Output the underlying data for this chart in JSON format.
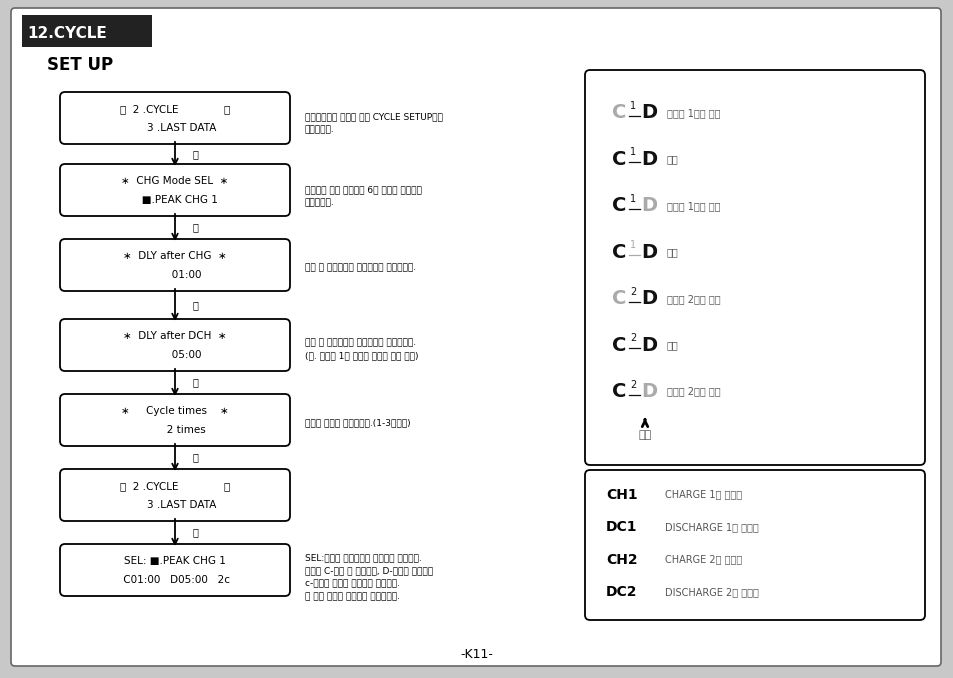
{
  "bg_color": "#c8c8c8",
  "title_bg": "#222222",
  "title_text": "12.CYCLE",
  "title_color": "#ffffff",
  "subtitle": "SET UP",
  "page_number": "-K11-",
  "flow_boxes": [
    {
      "lines": [
        "⏮  2 .CYCLE              ⏭",
        "    3 .LAST DATA"
      ]
    },
    {
      "lines": [
        "∗  CHG Mode SEL  ∗",
        "   ■.PEAK CHG 1"
      ]
    },
    {
      "lines": [
        "∗  DLY after CHG  ∗",
        "       01:00"
      ]
    },
    {
      "lines": [
        "∗  DLY after DCH  ∗",
        "       05:00"
      ]
    },
    {
      "lines": [
        "∗     Cycle times    ∗",
        "       2 times"
      ]
    },
    {
      "lines": [
        "⏮  2 .CYCLE              ⏭",
        "    3 .LAST DATA"
      ]
    },
    {
      "lines": [
        "SEL: ■.PEAK CHG 1",
        " C01:00   D05:00   2c"
      ]
    }
  ],
  "annots": [
    "메인메뉴에서 ⏮키를 눈러 CYCLE SETUP으로\n들어갑니다.",
    "저장되어 있는 충전모드 6개 중에서 한가지를\n선택합니다.",
    "충전 후 방전까지의 휴식시간을 설정합니다.",
    "방전 후 충전까지의 휴식시간을 설정합니다.\n(단. 사이클 1회 시에는 설정할 필요 없음)",
    "사이클 횟수를 설정합니다.(1-3회까지)",
    "",
    "SEL:선택된 충전모드를 보여주고 있습니다.\n지정된 C-충전 후 휴식시간, D-방전후 휴식시간\nc-사이클 횟수를 보여주고 있습니다.\n⏮ 키를 누르면 사이클을 시작합니다."
  ],
  "right_items": [
    {
      "num": "1",
      "c_gray": true,
      "d_gray": false,
      "n_gray": false,
      "text": "사이클 1회의 충전"
    },
    {
      "num": "1",
      "c_gray": false,
      "d_gray": false,
      "n_gray": false,
      "text": "휴식"
    },
    {
      "num": "1",
      "c_gray": false,
      "d_gray": true,
      "n_gray": false,
      "text": "사이클 1회의 방전"
    },
    {
      "num": "1",
      "c_gray": false,
      "d_gray": false,
      "n_gray": true,
      "text": "휴식"
    },
    {
      "num": "2",
      "c_gray": true,
      "d_gray": false,
      "n_gray": false,
      "text": "사이클 2회의 충전"
    },
    {
      "num": "2",
      "c_gray": false,
      "d_gray": false,
      "n_gray": false,
      "text": "휴식"
    },
    {
      "num": "2",
      "c_gray": false,
      "d_gray": true,
      "n_gray": false,
      "text": "사이클 2회의 방전"
    }
  ],
  "end_text": "종료",
  "legend_items": [
    {
      "key": "CH1",
      "val": "CHARGE 1의 데이터"
    },
    {
      "key": "DC1",
      "val": "DISCHARGE 1의 데이터"
    },
    {
      "key": "CH2",
      "val": "CHARGE 2의 데이터"
    },
    {
      "key": "DC2",
      "val": "DISCHARGE 2의 데이터"
    }
  ]
}
